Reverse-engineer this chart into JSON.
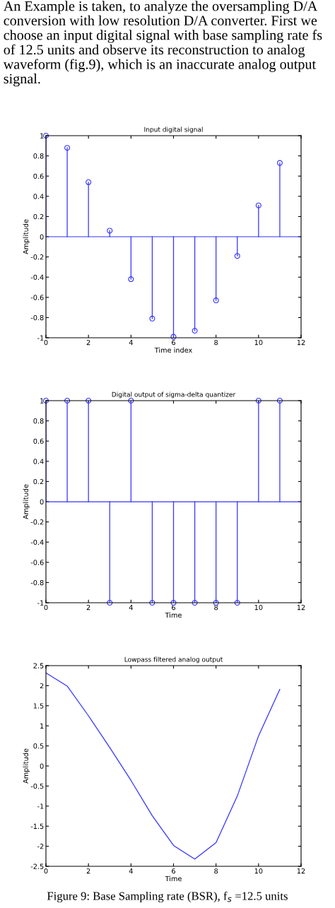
{
  "chart_data": [
    {
      "type": "lollipop",
      "title": "Input digital signal",
      "xlabel": "Time index",
      "ylabel": "Amplitude",
      "annotations": [
        "An Example is taken, to analyze the oversampling D/A conversion with low resolution D/A converter. First we choose an input digital signal with base sampling rate fs of 12.5 units and observe its reconstruction to analog waveform (fig.9), which is an inaccurate analog output signal."
      ],
      "x": [
        0,
        1,
        2,
        3,
        4,
        5,
        6,
        7,
        8,
        9,
        10,
        11
      ],
      "series": [
        {
          "color": "#3333ff",
          "values": [
            1,
            0.88,
            0.54,
            0.06,
            -0.42,
            -0.81,
            -0.99,
            -0.93,
            -0.63,
            -0.19,
            0.31,
            0.73
          ]
        }
      ],
      "marker": "circle",
      "xlim": [
        0,
        12
      ],
      "ylim": [
        -1,
        1
      ],
      "xticks": [
        0,
        2,
        4,
        6,
        8,
        10,
        12
      ],
      "ref_lines": [
        {
          "axis": "y",
          "value": 0,
          "color": "#3333ff"
        }
      ],
      "yticks": [
        -1,
        -0.8,
        -0.6,
        -0.4,
        -0.2,
        0,
        0.2,
        0.4,
        0.6,
        0.8,
        1
      ]
    },
    {
      "type": "lollipop",
      "title": "Digital output of sigma-delta quantizer",
      "xlabel": "Time",
      "ylabel": "Amplitude",
      "x": [
        0,
        1,
        2,
        3,
        4,
        5,
        6,
        7,
        8,
        9,
        10,
        11
      ],
      "series": [
        {
          "color": "#3333ff",
          "values": [
            1,
            1,
            1,
            -1,
            1,
            -1,
            -1,
            -1,
            -1,
            -1,
            1,
            1
          ]
        }
      ],
      "ref_lines": [
        {
          "axis": "y",
          "value": 0,
          "color": "#3333ff"
        }
      ],
      "marker": "circle",
      "xlim": [
        0,
        12
      ],
      "ylim": [
        -1,
        1
      ],
      "xticks": [
        0,
        2,
        4,
        6,
        8,
        10,
        12
      ],
      "yticks": [
        -1,
        -0.8,
        -0.6,
        -0.4,
        -0.2,
        0,
        0.2,
        0.4,
        0.6,
        0.8,
        1
      ]
    },
    {
      "type": "line",
      "title": "Lowpass filtered analog output",
      "xlabel": "Time",
      "ylabel": "Amplitude",
      "annotations": [
        "Figure 9: Base Sampling rate (BSR), f$_{s}$ =12.5 units"
      ],
      "x": [
        0,
        1,
        2,
        3,
        4,
        5,
        6,
        7,
        8,
        9,
        10,
        11
      ],
      "series": [
        {
          "color": "#3333ff",
          "values": [
            2.32,
            1.99,
            1.25,
            0.46,
            -0.36,
            -1.24,
            -1.98,
            -2.32,
            -1.91,
            -0.75,
            0.75,
            1.91
          ]
        }
      ],
      "xlim": [
        0,
        12
      ],
      "ylim": [
        -2.5,
        2.5
      ],
      "xticks": [
        0,
        2,
        4,
        6,
        8,
        10,
        12
      ],
      "yticks": [
        -2.5,
        -2,
        -1.5,
        -1,
        -0.5,
        0,
        0.5,
        1,
        1.5,
        2,
        2.5
      ]
    }
  ]
}
